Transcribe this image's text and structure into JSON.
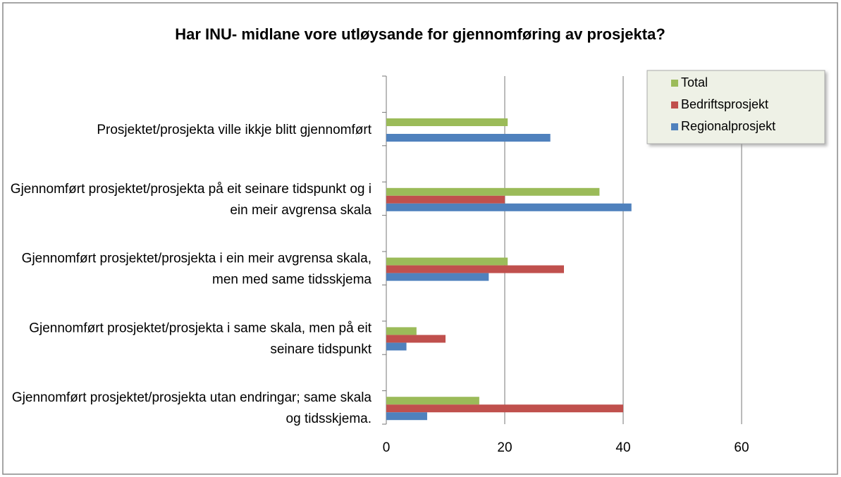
{
  "chart_data": {
    "type": "barh",
    "title": "Har INU- midlane vore utløysande for gjennomføring av prosjekta?",
    "categories": [
      "Prosjektet/prosjekta ville ikkje blitt gjennomført",
      "Gjennomført prosjektet/prosjekta på eit seinare tidspunkt og i ein meir avgrensa skala",
      "Gjennomført prosjektet/prosjekta i ein meir avgrensa skala, men med same tidsskjema",
      "Gjennomført prosjektet/prosjekta i same skala, men på eit seinare tidspunkt",
      "Gjennomført prosjektet/prosjekta utan endringar; same skala og tidsskjema."
    ],
    "series": [
      {
        "name": "Total",
        "color": "#9bbb59",
        "values": [
          20.5,
          36,
          20.5,
          5.1,
          15.7
        ]
      },
      {
        "name": "Bedriftsprosjekt",
        "color": "#c0504d",
        "values": [
          0,
          20,
          30,
          10,
          40
        ]
      },
      {
        "name": "Regionalprosjekt",
        "color": "#4f81bd",
        "values": [
          27.7,
          41.4,
          17.3,
          3.4,
          6.9
        ]
      }
    ],
    "xlim": [
      0,
      60
    ],
    "xticks": [
      0,
      20,
      40,
      60
    ],
    "grid": true,
    "legend": "top-right"
  }
}
